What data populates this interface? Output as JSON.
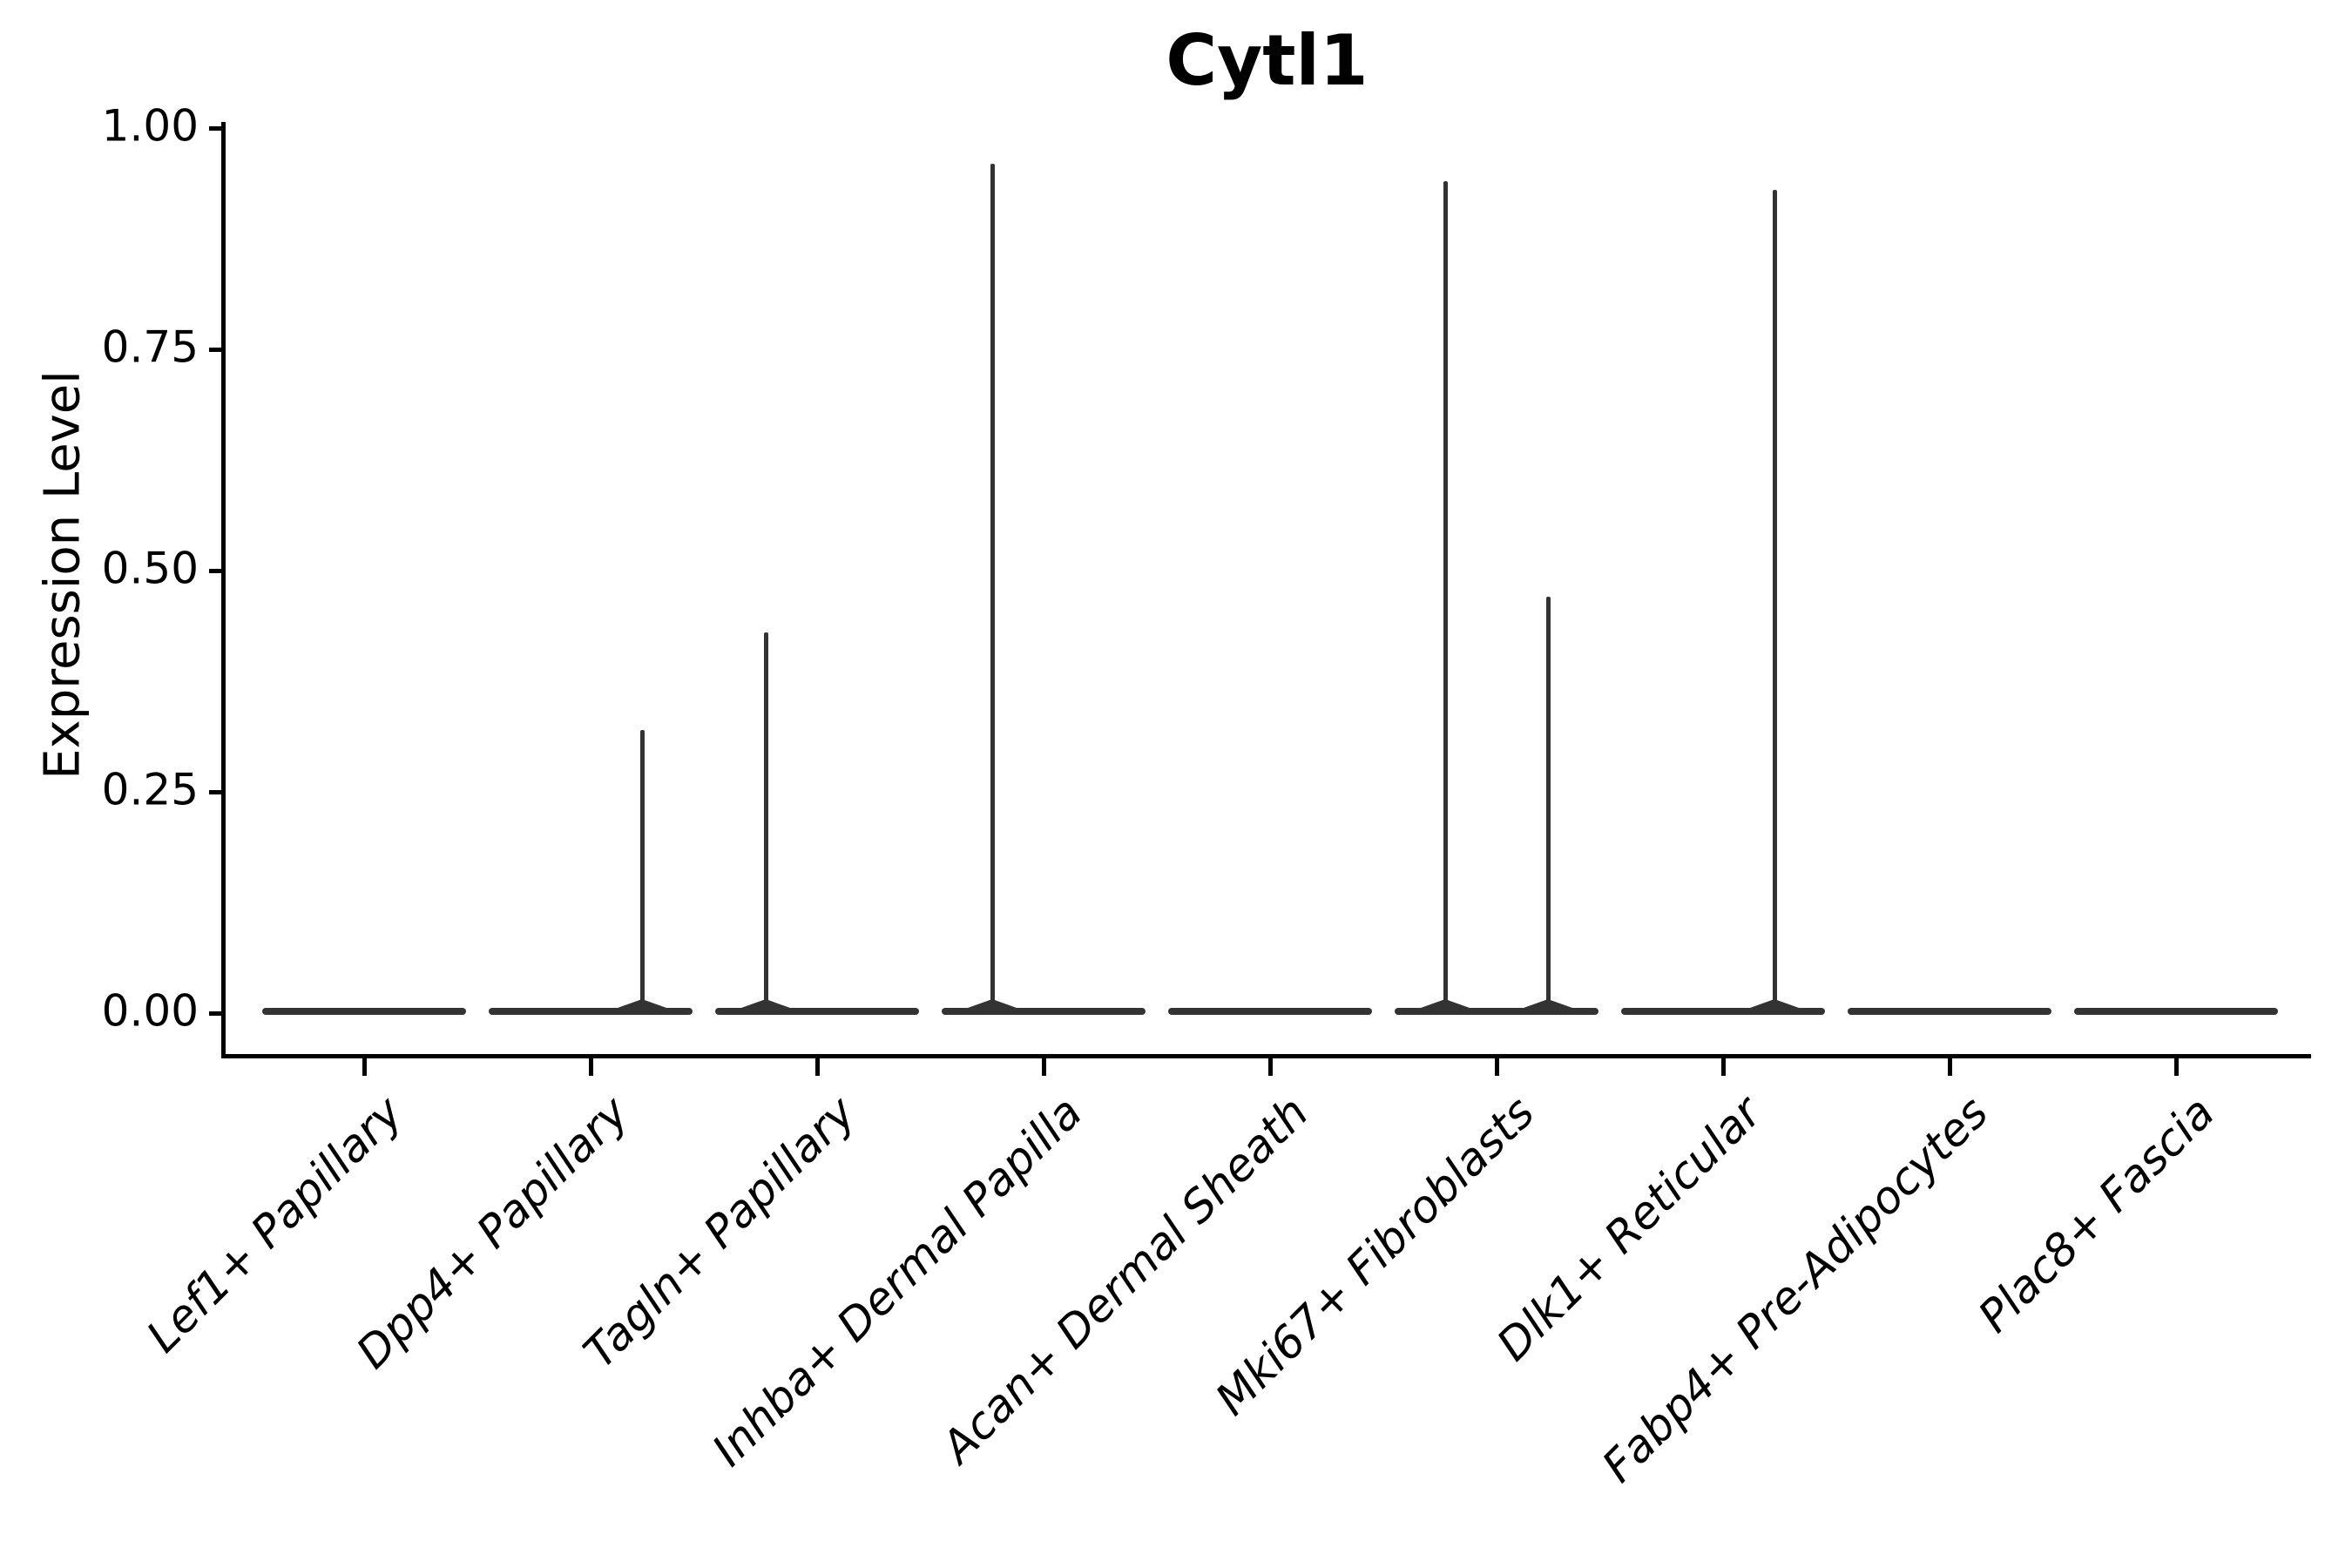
{
  "figure": {
    "title": "Cytl1"
  },
  "style": {
    "background": "#ffffff",
    "axis_color": "#000000",
    "text_color": "#000000",
    "violin_color": "#333333"
  },
  "chart_data": {
    "type": "violin",
    "title": "Cytl1",
    "xlabel": "",
    "ylabel": "Expression Level",
    "ylim": [
      0,
      1.0
    ],
    "yticks": [
      0,
      0.25,
      0.5,
      0.75,
      1.0
    ],
    "ytick_labels": [
      "0.00",
      "0.25",
      "0.50",
      "0.75",
      "1.00"
    ],
    "grid": false,
    "legend": "none",
    "x_label_rotation_deg": 45,
    "x_label_style": "italic",
    "violin_width_fraction": 0.9,
    "spike_x_offset_fraction": 0.225,
    "categories": [
      "Lef1+ Papillary",
      "Dpp4+ Papillary",
      "Tagln+ Papillary",
      "Inhba+ Dermal Papilla",
      "Acan+ Dermal Sheath",
      "Mki67+ Fibroblasts",
      "Dlk1+ Reticular",
      "Fabp4+ Pre-Adipocytes",
      "Plac8+ Fascia"
    ],
    "violins": [
      {
        "category": "Lef1+ Papillary",
        "base_value": 0,
        "spikes": []
      },
      {
        "category": "Dpp4+ Papillary",
        "base_value": 0,
        "spikes": [
          {
            "position": "right",
            "peak": 0.32
          }
        ]
      },
      {
        "category": "Tagln+ Papillary",
        "base_value": 0,
        "spikes": [
          {
            "position": "left",
            "peak": 0.43
          }
        ]
      },
      {
        "category": "Inhba+ Dermal Papilla",
        "base_value": 0,
        "spikes": [
          {
            "position": "left",
            "peak": 0.96
          }
        ]
      },
      {
        "category": "Acan+ Dermal Sheath",
        "base_value": 0,
        "spikes": []
      },
      {
        "category": "Mki67+ Fibroblasts",
        "base_value": 0,
        "spikes": [
          {
            "position": "left",
            "peak": 0.94
          },
          {
            "position": "right",
            "peak": 0.47
          }
        ]
      },
      {
        "category": "Dlk1+ Reticular",
        "base_value": 0,
        "spikes": [
          {
            "position": "right",
            "peak": 0.93
          }
        ]
      },
      {
        "category": "Fabp4+ Pre-Adipocytes",
        "base_value": 0,
        "spikes": []
      },
      {
        "category": "Plac8+ Fascia",
        "base_value": 0,
        "spikes": []
      }
    ]
  }
}
